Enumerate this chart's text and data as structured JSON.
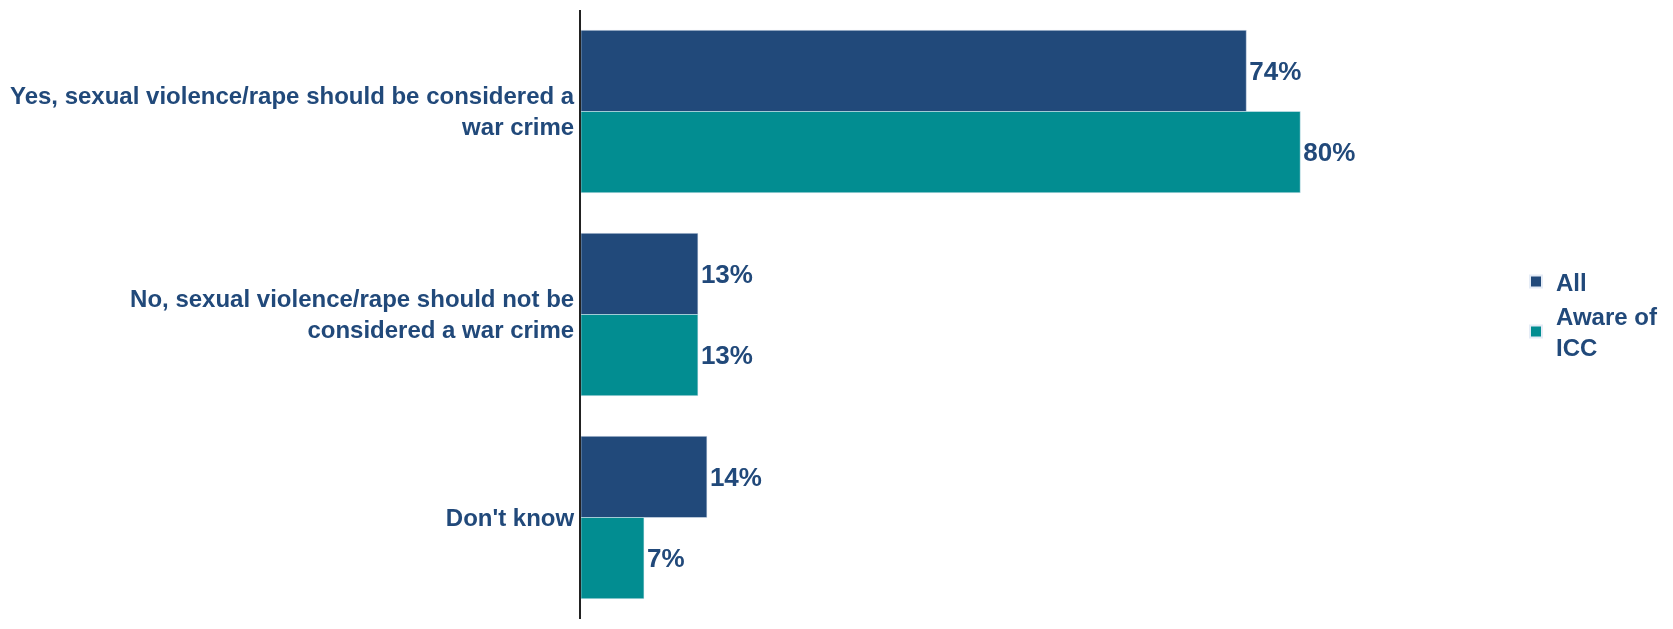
{
  "chart_data": {
    "type": "bar",
    "orientation": "horizontal",
    "categories": [
      "Yes, sexual violence/rape should be considered a war crime",
      "No, sexual violence/rape should not be considered a war crime",
      "Don't know"
    ],
    "series": [
      {
        "name": "All",
        "color": "#21497a",
        "values": [
          74,
          13,
          14
        ],
        "value_labels": [
          "74%",
          "13%",
          "14%"
        ]
      },
      {
        "name": "Aware of ICC",
        "color": "#028d91",
        "values": [
          80,
          13,
          7
        ],
        "value_labels": [
          "80%",
          "13%",
          "7%"
        ]
      }
    ],
    "legend": "right"
  }
}
